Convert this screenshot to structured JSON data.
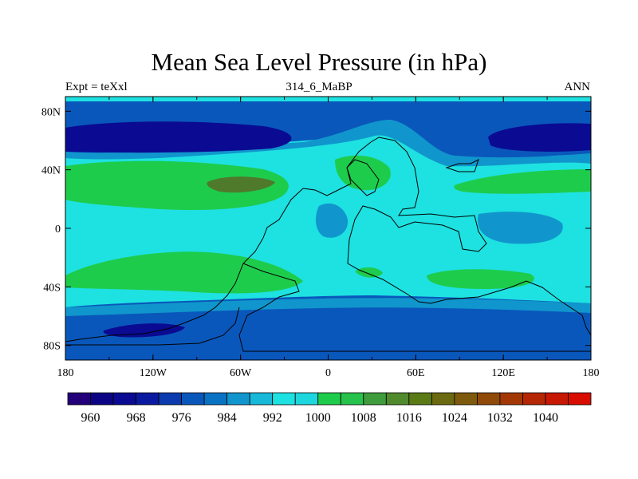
{
  "title": "Mean Sea Level Pressure (in hPa)",
  "left_string": "Expt = teXxl",
  "center_string": "314_6_MaBP",
  "right_string": "ANN",
  "x_tick_labels": [
    "180",
    "120W",
    "60W",
    "0",
    "60E",
    "120E",
    "180"
  ],
  "y_tick_labels": [
    "80N",
    "40N",
    "0",
    "40S",
    "80S"
  ],
  "colorbar": {
    "labels": [
      "960",
      "968",
      "976",
      "984",
      "992",
      "1000",
      "1008",
      "1016",
      "1024",
      "1032",
      "1040"
    ],
    "colors": [
      "#23007a",
      "#0c0485",
      "#0a0b92",
      "#0a1aa0",
      "#0a3aae",
      "#0a57bb",
      "#0a72c3",
      "#1096cc",
      "#18b8d9",
      "#1ee1e1",
      "#1ed6dd",
      "#1ecc4c",
      "#26c24c",
      "#3f9c3c",
      "#4f8a2c",
      "#5a7a16",
      "#6b6a10",
      "#7e5a0c",
      "#8f4a08",
      "#a43805",
      "#b52604",
      "#c61802",
      "#d90c00"
    ]
  },
  "colors": {
    "band_dark": "#0a0b92",
    "band_mid": "#0a57bb",
    "band_light": "#1096cc",
    "cyan": "#1ee1e1",
    "green": "#1ecc4c",
    "darkgreen": "#4f7a2c"
  }
}
